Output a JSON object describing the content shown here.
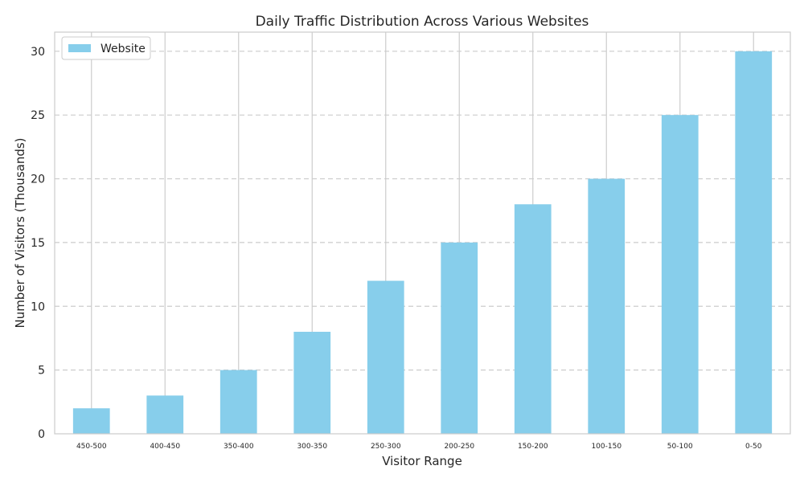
{
  "chart_data": {
    "type": "bar",
    "title": "Daily Traffic Distribution Across Various Websites",
    "xlabel": "Visitor Range",
    "ylabel": "Number of Visitors (Thousands)",
    "categories": [
      "450-500",
      "400-450",
      "350-400",
      "300-350",
      "250-300",
      "200-250",
      "150-200",
      "100-150",
      "50-100",
      "0-50"
    ],
    "series": [
      {
        "name": "Website",
        "values": [
          2,
          3,
          5,
          8,
          12,
          15,
          18,
          20,
          25,
          30
        ]
      }
    ],
    "ylim": [
      0,
      31.5
    ],
    "yticks": [
      0,
      5,
      10,
      15,
      20,
      25,
      30
    ],
    "grid": {
      "horizontal": "dashed",
      "vertical": "solid"
    },
    "legend": {
      "position": "top-left"
    },
    "colors": {
      "bar": "#87ceeb",
      "grid": "#cccccc",
      "frame": "#cccccc"
    }
  }
}
